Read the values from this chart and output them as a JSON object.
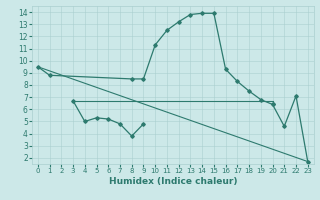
{
  "xlim": [
    -0.5,
    23.5
  ],
  "ylim": [
    1.5,
    14.5
  ],
  "yticks": [
    2,
    3,
    4,
    5,
    6,
    7,
    8,
    9,
    10,
    11,
    12,
    13,
    14
  ],
  "xticks": [
    0,
    1,
    2,
    3,
    4,
    5,
    6,
    7,
    8,
    9,
    10,
    11,
    12,
    13,
    14,
    15,
    16,
    17,
    18,
    19,
    20,
    21,
    22,
    23
  ],
  "xlabel": "Humidex (Indice chaleur)",
  "background_color": "#cce8e8",
  "grid_color": "#aacfcf",
  "line_color": "#2d7a6e",
  "xlabel_fontsize": 6.5,
  "xtick_fontsize": 5.0,
  "ytick_fontsize": 5.5,
  "line_configs": [
    {
      "x": [
        0,
        1,
        8,
        9,
        10,
        11,
        12,
        13,
        14,
        15,
        16,
        17,
        18,
        19,
        20
      ],
      "y": [
        9.5,
        8.8,
        8.5,
        8.5,
        11.3,
        12.5,
        13.2,
        13.8,
        13.9,
        13.9,
        9.3,
        8.3,
        7.5,
        6.8,
        6.4
      ],
      "marker": "D",
      "ms": 1.8,
      "lw": 0.9,
      "ls": "-"
    },
    {
      "x": [
        3,
        4,
        5,
        6,
        7,
        8,
        9
      ],
      "y": [
        6.7,
        5.0,
        5.3,
        5.2,
        4.8,
        3.8,
        4.8
      ],
      "marker": "D",
      "ms": 1.8,
      "lw": 0.9,
      "ls": "-"
    },
    {
      "x": [
        3,
        20
      ],
      "y": [
        6.7,
        6.7
      ],
      "marker": "none",
      "ms": 0,
      "lw": 0.8,
      "ls": "-"
    },
    {
      "x": [
        0,
        23
      ],
      "y": [
        9.5,
        1.7
      ],
      "marker": "none",
      "ms": 0,
      "lw": 0.8,
      "ls": "-"
    },
    {
      "x": [
        20,
        21,
        22,
        23
      ],
      "y": [
        6.4,
        4.6,
        7.1,
        1.7
      ],
      "marker": "D",
      "ms": 1.8,
      "lw": 0.9,
      "ls": "-"
    }
  ]
}
